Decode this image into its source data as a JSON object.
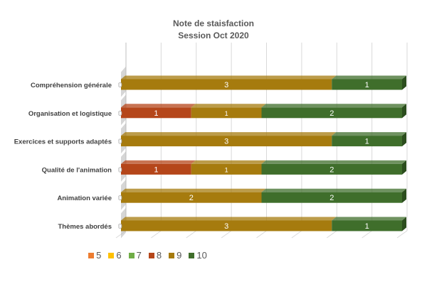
{
  "chart_data": {
    "type": "bar",
    "orientation": "horizontal",
    "stacked": true,
    "title": "Note de staisfaction",
    "subtitle": "Session Oct 2020",
    "categories": [
      "Compréhension générale",
      "Organisation et logistique",
      "Exercices et supports adaptés",
      "Qualité de l'animation",
      "Animation variée",
      "Thèmes abordés"
    ],
    "series": [
      {
        "name": "5",
        "color": "#ed7d31",
        "values": [
          0,
          0,
          0,
          0,
          0,
          0
        ]
      },
      {
        "name": "6",
        "color": "#ffc000",
        "values": [
          0,
          0,
          0,
          0,
          0,
          0
        ]
      },
      {
        "name": "7",
        "color": "#70ad47",
        "values": [
          0,
          0,
          0,
          0,
          0,
          0
        ]
      },
      {
        "name": "8",
        "color": "#b5461a",
        "values": [
          0,
          1,
          0,
          1,
          0,
          0
        ]
      },
      {
        "name": "9",
        "color": "#a67b0e",
        "values": [
          3,
          1,
          3,
          1,
          2,
          3
        ]
      },
      {
        "name": "10",
        "color": "#3f6e2b",
        "values": [
          1,
          2,
          1,
          2,
          2,
          1
        ]
      }
    ],
    "xlim": [
      0,
      4
    ],
    "grid": true,
    "legend": "bottom"
  }
}
